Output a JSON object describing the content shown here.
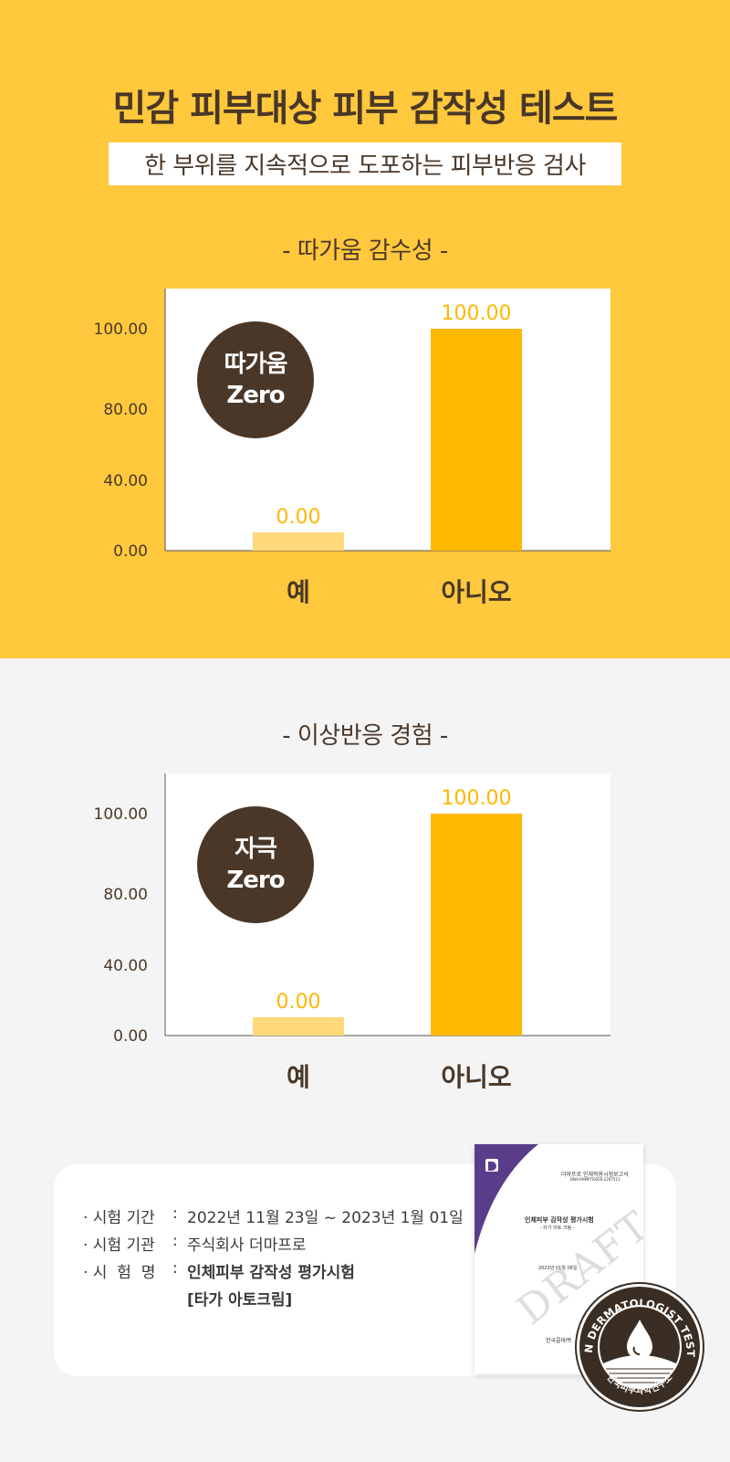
{
  "header": {
    "title": "민감 피부대상 피부 감작성 테스트",
    "subtitle": "한 부위를 지속적으로 도포하는 피부반응 검사"
  },
  "charts": [
    {
      "section_title": "- 따가움 감수성 -",
      "badge": {
        "line1": "따가움",
        "line2": "Zero"
      },
      "categories": [
        "예",
        "아니오"
      ]
    },
    {
      "section_title": "- 이상반응 경험 -",
      "badge": {
        "line1": "자극",
        "line2": "Zero"
      },
      "categories": [
        "예",
        "아니오"
      ]
    }
  ],
  "chart_data": [
    {
      "type": "bar",
      "title": "- 따가움 감수성 -",
      "categories": [
        "예",
        "아니오"
      ],
      "values": [
        0.0,
        100.0
      ],
      "data_labels": [
        "0.00",
        "100.00"
      ],
      "yticks": [
        "0.00",
        "40.00",
        "80.00",
        "100.00"
      ],
      "colors": [
        "#ffd97a",
        "#ffb800"
      ],
      "grid": false
    },
    {
      "type": "bar",
      "title": "- 이상반응 경험 -",
      "categories": [
        "예",
        "아니오"
      ],
      "values": [
        0.0,
        100.0
      ],
      "data_labels": [
        "0.00",
        "100.00"
      ],
      "yticks": [
        "0.00",
        "40.00",
        "80.00",
        "100.00"
      ],
      "colors": [
        "#ffd97a",
        "#ffb800"
      ],
      "grid": false
    }
  ],
  "test_info": {
    "rows": [
      {
        "key": "· 시험 기간",
        "value": "2022년 11월 23일 ~ 2023년 1월 01일"
      },
      {
        "key": "· 시험 기관",
        "value": "주식회사 더마프로"
      },
      {
        "key": "· 시  험  명",
        "value": "인체피부 감작성 평가시험"
      }
    ],
    "product": "[타가 아토크림]"
  },
  "report_doc": {
    "header_line": "더마프로 인체적용시험보고서",
    "sub_header": "DNA-PHMPTI0028-2207513",
    "title": "인체피부 감작성 평가시험",
    "product": "- 타가 아토 크림 -",
    "date": "2023년 01월 06일",
    "org": "한국콜마㈜",
    "watermark": "DRAFT"
  },
  "seal": {
    "ring_text": "SKIN DERMATOLOGIST TESTED",
    "bottom_text": "한국피부과학연구소"
  },
  "colors": {
    "top_bg": "#ffc83d",
    "bottom_bg": "#f4f4f4",
    "brown": "#4a3728",
    "bar_main": "#ffb800",
    "bar_light": "#ffd97a"
  }
}
